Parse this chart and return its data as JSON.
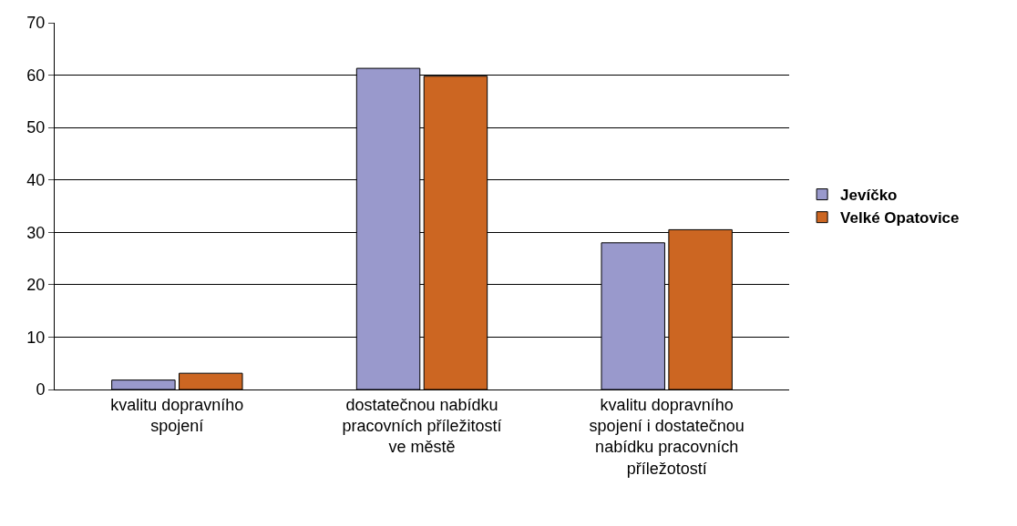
{
  "chart_data": {
    "type": "bar",
    "categories": [
      "kvalitu dopravního spojení",
      "dostatečnou nabídku pracovních příležitostí ve městě",
      "kvalitu dopravního spojení i dostatečnou nabídku pracovních příležotostí"
    ],
    "series": [
      {
        "name": "Jevíčko",
        "color": "#9999cc",
        "values": [
          1.8,
          61.3,
          28.0
        ]
      },
      {
        "name": "Velké Opatovice",
        "color": "#cc6622",
        "values": [
          3.1,
          59.8,
          30.5
        ]
      }
    ],
    "ylim": [
      0,
      70
    ],
    "yticks": [
      0,
      10,
      20,
      30,
      40,
      50,
      60,
      70
    ],
    "grid": "y",
    "legend": "right"
  }
}
